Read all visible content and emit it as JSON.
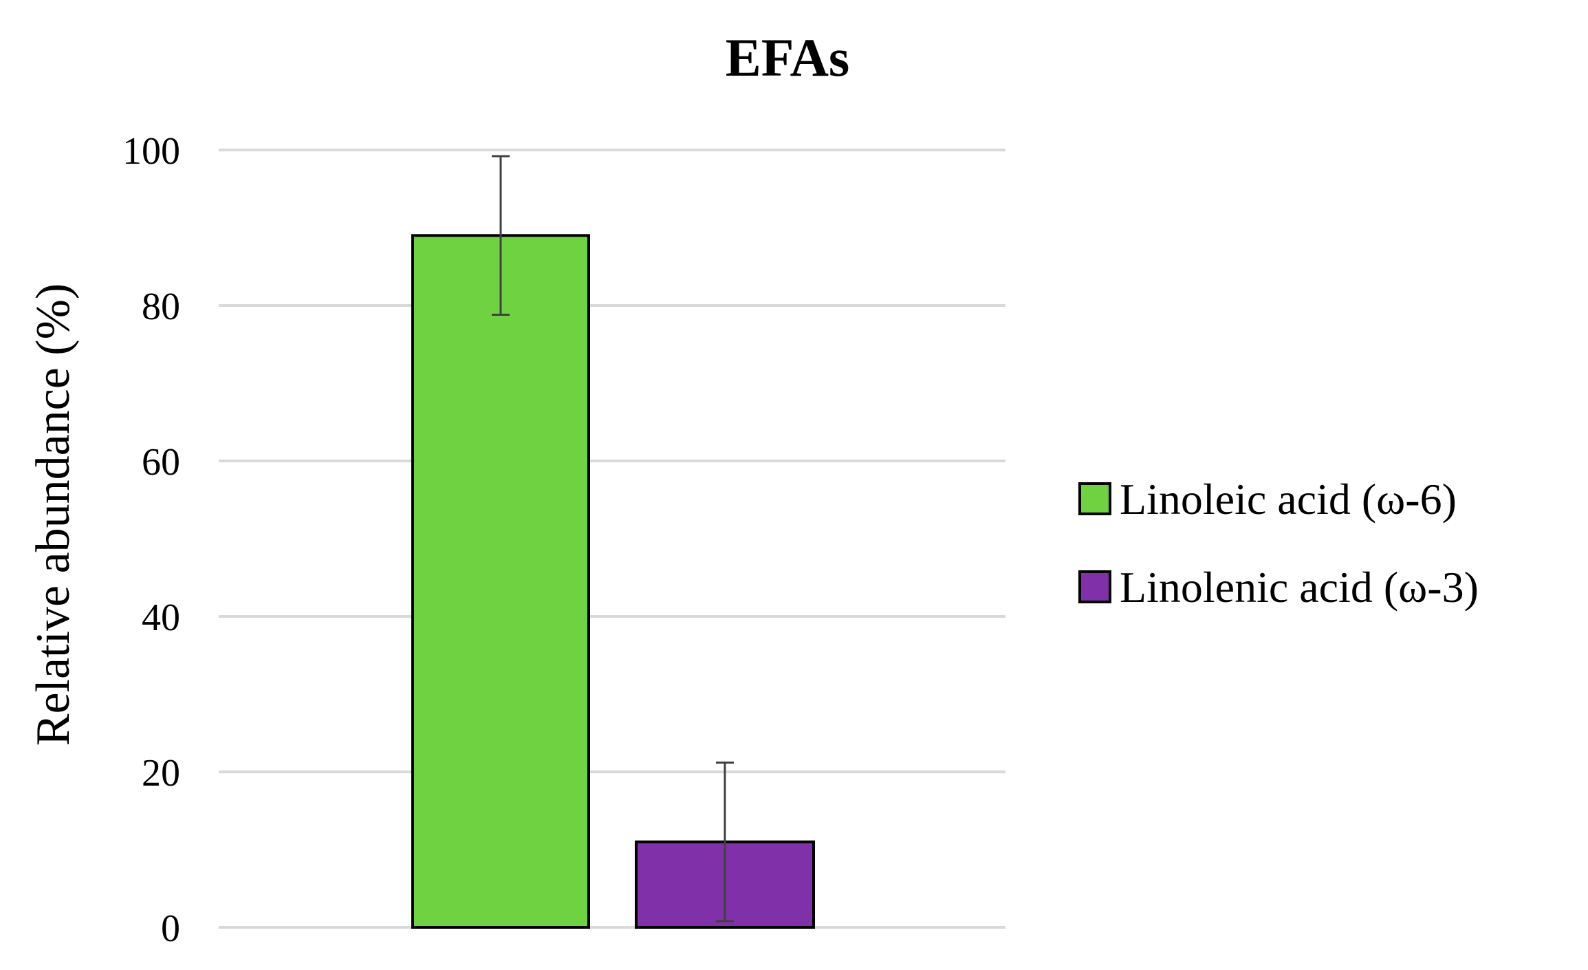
{
  "chart_data": {
    "type": "bar",
    "title": "EFAs",
    "xlabel": "",
    "ylabel": "Relative abundance (%)",
    "ylim": [
      0,
      100
    ],
    "yticks": [
      0,
      20,
      40,
      60,
      80,
      100
    ],
    "grid": true,
    "legend_position": "right",
    "series": [
      {
        "name": "Linoleic acid (ω-6)",
        "value": 89,
        "error": 10.2,
        "color": "#6fd341"
      },
      {
        "name": "Linolenic acid (ω-3)",
        "value": 11,
        "error": 10.2,
        "color": "#8030a8"
      }
    ]
  }
}
